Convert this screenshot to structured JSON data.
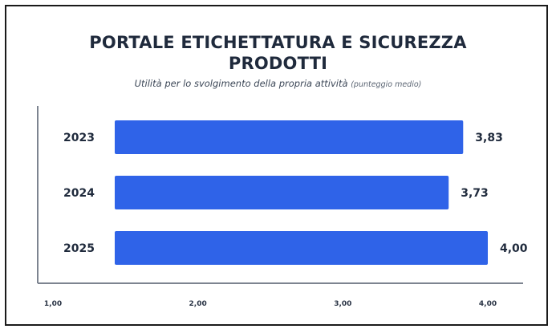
{
  "chart_data": {
    "type": "bar",
    "orientation": "horizontal",
    "title_lines": [
      "PORTALE ETICHETTATURA E SICUREZZA",
      "PRODOTTI"
    ],
    "subtitle": "Utilità per lo svolgimento della propria attività",
    "subtitle_note": "(punteggio medio)",
    "categories": [
      "2023",
      "2024",
      "2025"
    ],
    "values": [
      3.83,
      3.73,
      4.0
    ],
    "value_labels": [
      "3,83",
      "3,73",
      "4,00"
    ],
    "xlim": [
      1.0,
      4.0
    ],
    "ticks": [
      1.0,
      2.0,
      3.0,
      4.0
    ],
    "tick_labels": [
      "1,00",
      "2,00",
      "3,00",
      "4,00"
    ],
    "bar_color": "#2f63e8",
    "grid": false
  }
}
